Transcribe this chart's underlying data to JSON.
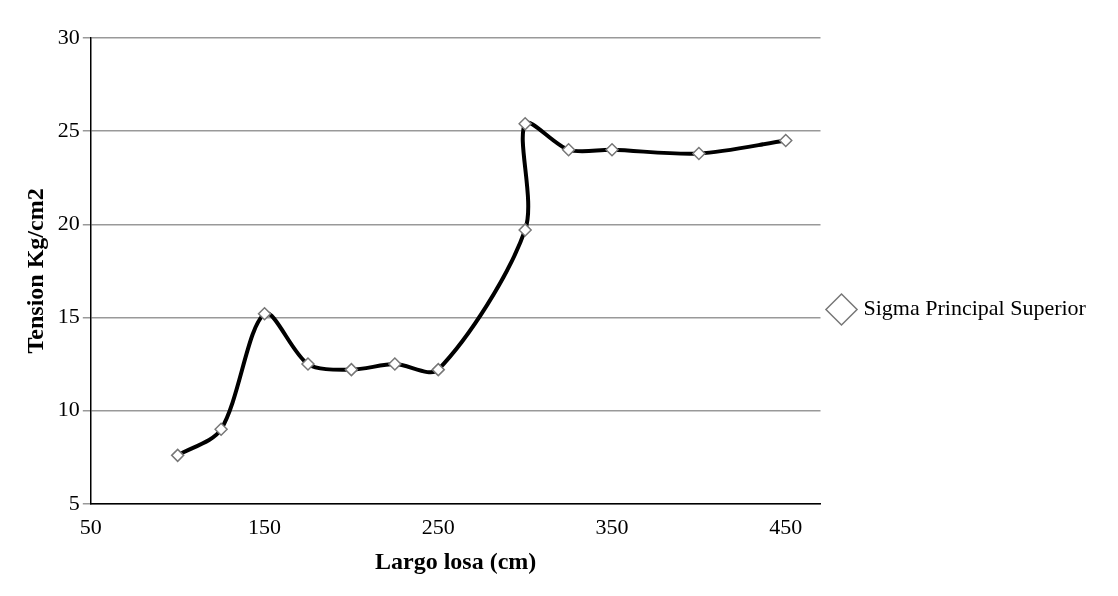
{
  "chart_data": {
    "type": "line",
    "xlabel": "Largo losa (cm)",
    "ylabel": "Tension Kg/cm2",
    "xlim": [
      50,
      470
    ],
    "xticks": [
      50,
      150,
      250,
      350,
      450
    ],
    "ylim": [
      5,
      30
    ],
    "yticks": [
      5,
      10,
      15,
      20,
      25,
      30
    ],
    "grid": "y",
    "legend": "right",
    "marker": "diamond",
    "line_style": "solid",
    "series": [
      {
        "name": "Sigma Principal Superior",
        "color": "#000000",
        "x": [
          100,
          125,
          150,
          175,
          200,
          225,
          250,
          300,
          300,
          325,
          350,
          400,
          450
        ],
        "values": [
          7.6,
          9.0,
          15.2,
          12.5,
          12.2,
          12.5,
          12.2,
          19.7,
          25.4,
          24.0,
          24.0,
          23.8,
          24.5
        ]
      }
    ]
  }
}
